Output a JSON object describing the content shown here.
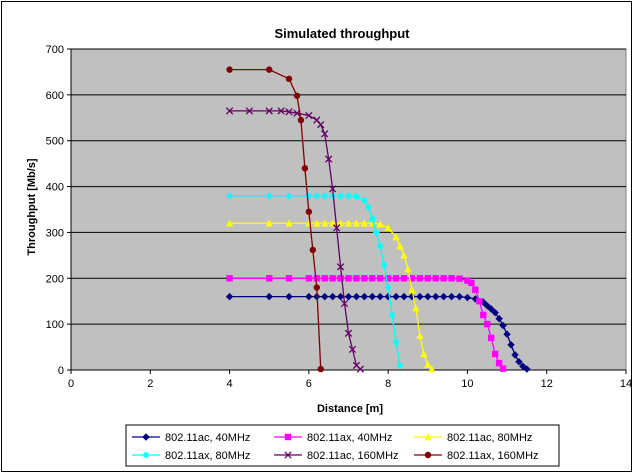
{
  "chart_data": {
    "type": "line",
    "title": "Simulated throughput",
    "xlabel": "Distance [m]",
    "ylabel": "Throughput [Mb/s]",
    "xlim": [
      0,
      14
    ],
    "ylim": [
      0,
      700
    ],
    "xticks": [
      0,
      2,
      4,
      6,
      8,
      10,
      12,
      14
    ],
    "yticks": [
      0,
      100,
      200,
      300,
      400,
      500,
      600,
      700
    ],
    "grid": true,
    "plot_background": "#c0c0c0",
    "legend_position": "bottom",
    "series": [
      {
        "name": "802.11ac, 40MHz",
        "color": "#000080",
        "marker": "diamond",
        "points": [
          [
            4,
            160
          ],
          [
            5,
            160
          ],
          [
            5.5,
            160
          ],
          [
            6,
            160
          ],
          [
            6.2,
            160
          ],
          [
            6.4,
            160
          ],
          [
            6.6,
            160
          ],
          [
            6.8,
            160
          ],
          [
            7,
            160
          ],
          [
            7.2,
            160
          ],
          [
            7.4,
            160
          ],
          [
            7.6,
            160
          ],
          [
            7.8,
            160
          ],
          [
            8,
            160
          ],
          [
            8.2,
            160
          ],
          [
            8.4,
            160
          ],
          [
            8.6,
            160
          ],
          [
            8.8,
            160
          ],
          [
            9,
            160
          ],
          [
            9.2,
            160
          ],
          [
            9.4,
            160
          ],
          [
            9.6,
            160
          ],
          [
            9.8,
            160
          ],
          [
            10,
            158
          ],
          [
            10.2,
            155
          ],
          [
            10.4,
            148
          ],
          [
            10.5,
            140
          ],
          [
            10.6,
            133
          ],
          [
            10.7,
            125
          ],
          [
            10.8,
            112
          ],
          [
            10.9,
            97
          ],
          [
            11,
            78
          ],
          [
            11.1,
            55
          ],
          [
            11.2,
            33
          ],
          [
            11.3,
            18
          ],
          [
            11.4,
            8
          ],
          [
            11.5,
            2
          ]
        ]
      },
      {
        "name": "802.11ax, 40MHz",
        "color": "#ff00ff",
        "marker": "square",
        "points": [
          [
            4,
            200
          ],
          [
            5,
            200
          ],
          [
            5.5,
            200
          ],
          [
            6,
            200
          ],
          [
            6.2,
            200
          ],
          [
            6.4,
            200
          ],
          [
            6.6,
            200
          ],
          [
            6.8,
            200
          ],
          [
            7,
            200
          ],
          [
            7.2,
            200
          ],
          [
            7.4,
            200
          ],
          [
            7.6,
            200
          ],
          [
            7.8,
            200
          ],
          [
            8,
            200
          ],
          [
            8.2,
            200
          ],
          [
            8.4,
            200
          ],
          [
            8.6,
            200
          ],
          [
            8.8,
            200
          ],
          [
            9,
            200
          ],
          [
            9.2,
            200
          ],
          [
            9.4,
            200
          ],
          [
            9.6,
            200
          ],
          [
            9.8,
            199
          ],
          [
            10,
            195
          ],
          [
            10.1,
            190
          ],
          [
            10.2,
            175
          ],
          [
            10.3,
            150
          ],
          [
            10.4,
            120
          ],
          [
            10.5,
            100
          ],
          [
            10.6,
            70
          ],
          [
            10.7,
            35
          ],
          [
            10.8,
            15
          ],
          [
            10.9,
            3
          ]
        ]
      },
      {
        "name": "802.11ac, 80MHz",
        "color": "#ffff00",
        "marker": "triangle",
        "points": [
          [
            4,
            320
          ],
          [
            5,
            320
          ],
          [
            5.5,
            320
          ],
          [
            6,
            320
          ],
          [
            6.2,
            320
          ],
          [
            6.4,
            320
          ],
          [
            6.6,
            320
          ],
          [
            6.8,
            320
          ],
          [
            7,
            320
          ],
          [
            7.2,
            320
          ],
          [
            7.4,
            320
          ],
          [
            7.6,
            320
          ],
          [
            7.8,
            318
          ],
          [
            8,
            310
          ],
          [
            8.2,
            290
          ],
          [
            8.3,
            270
          ],
          [
            8.4,
            250
          ],
          [
            8.5,
            220
          ],
          [
            8.6,
            175
          ],
          [
            8.7,
            135
          ],
          [
            8.8,
            75
          ],
          [
            8.9,
            35
          ],
          [
            9,
            12
          ],
          [
            9.1,
            2
          ]
        ]
      },
      {
        "name": "802.11ax, 80MHz",
        "color": "#00ffff",
        "marker": "star",
        "points": [
          [
            4,
            380
          ],
          [
            5,
            380
          ],
          [
            5.5,
            380
          ],
          [
            6,
            380
          ],
          [
            6.2,
            380
          ],
          [
            6.4,
            380
          ],
          [
            6.6,
            380
          ],
          [
            6.8,
            380
          ],
          [
            7,
            380
          ],
          [
            7.2,
            378
          ],
          [
            7.4,
            370
          ],
          [
            7.5,
            355
          ],
          [
            7.6,
            330
          ],
          [
            7.7,
            300
          ],
          [
            7.8,
            270
          ],
          [
            7.9,
            230
          ],
          [
            8,
            180
          ],
          [
            8.1,
            120
          ],
          [
            8.2,
            60
          ],
          [
            8.3,
            10
          ]
        ]
      },
      {
        "name": "802.11ac, 160MHz",
        "color": "#660066",
        "marker": "x",
        "points": [
          [
            4,
            565
          ],
          [
            4.5,
            565
          ],
          [
            5,
            565
          ],
          [
            5.3,
            565
          ],
          [
            5.5,
            563
          ],
          [
            5.7,
            560
          ],
          [
            6,
            555
          ],
          [
            6.2,
            545
          ],
          [
            6.3,
            535
          ],
          [
            6.4,
            515
          ],
          [
            6.5,
            460
          ],
          [
            6.6,
            395
          ],
          [
            6.7,
            310
          ],
          [
            6.8,
            225
          ],
          [
            6.9,
            145
          ],
          [
            7,
            80
          ],
          [
            7.1,
            45
          ],
          [
            7.2,
            10
          ],
          [
            7.3,
            2
          ]
        ]
      },
      {
        "name": "802.11ax, 160MHz",
        "color": "#800000",
        "marker": "circle",
        "points": [
          [
            4,
            655
          ],
          [
            5,
            655
          ],
          [
            5.5,
            635
          ],
          [
            5.7,
            598
          ],
          [
            5.8,
            545
          ],
          [
            5.9,
            440
          ],
          [
            6,
            345
          ],
          [
            6.1,
            262
          ],
          [
            6.2,
            180
          ],
          [
            6.3,
            2
          ]
        ]
      }
    ]
  }
}
